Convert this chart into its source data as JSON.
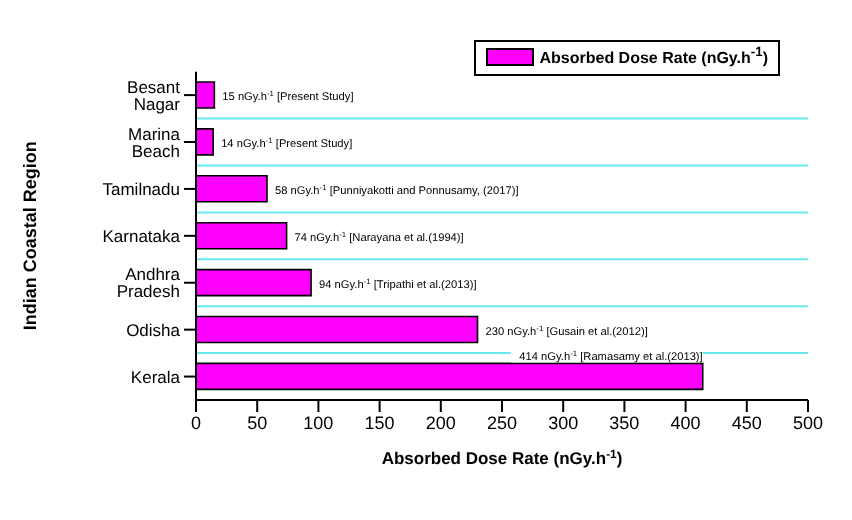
{
  "chart_data": {
    "type": "bar",
    "orientation": "horizontal",
    "xlabel": "Absorbed Dose Rate (nGy.h$^{-1}$)",
    "ylabel": "Indian Coastal Region",
    "categories": [
      "Besant Nagar",
      "Marina Beach",
      "Tamilnadu",
      "Karnataka",
      "Andhra Pradesh",
      "Odisha",
      "Kerala"
    ],
    "series": [
      {
        "name": "Absorbed Dose Rate (nGy.h$^{-1}$)",
        "color": "#ff00ff",
        "values": [
          15,
          14,
          58,
          74,
          94,
          230,
          414
        ],
        "value_labels": [
          "15 nGy.h$^{-1}$ [Present Study]",
          "14 nGy.h$^{-1}$ [Present Study]",
          "58 nGy.h$^{-1}$ [Punniyakotti and Ponnusamy, (2017)]",
          "74 nGy.h$^{-1}$ [Narayana et al.(1994)]",
          "94 nGy.h$^{-1}$ [Tripathi et al.(2013)]",
          "230 nGy.h$^{-1}$ [Gusain et al.(2012)]",
          "414 nGy.h$^{-1}$ [Ramasamy et al.(2013)]"
        ]
      }
    ],
    "xlim": [
      0,
      500
    ],
    "xticks": [
      0,
      50,
      100,
      150,
      200,
      250,
      300,
      350,
      400,
      450,
      500
    ],
    "grid": "y",
    "legend": "top right"
  }
}
